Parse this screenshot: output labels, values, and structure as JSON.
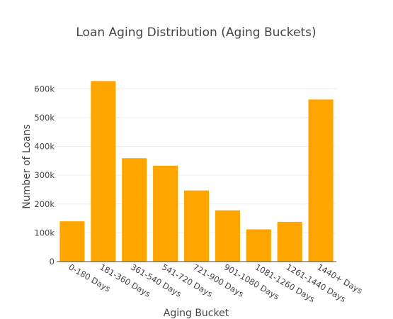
{
  "chart_data": {
    "type": "bar",
    "title": "Loan Aging Distribution (Aging Buckets)",
    "xlabel": "Aging Bucket",
    "ylabel": "Number of Loans",
    "categories": [
      "0-180 Days",
      "181-360 Days",
      "361-540 Days",
      "541-720 Days",
      "721-900 Days",
      "901-1080 Days",
      "1081-1260 Days",
      "1261-1440 Days",
      "1440+ Days"
    ],
    "values": [
      140000,
      627000,
      359000,
      333000,
      247000,
      178000,
      112000,
      138000,
      563000
    ],
    "ylim": [
      0,
      650000
    ],
    "yticks": [
      0,
      100000,
      200000,
      300000,
      400000,
      500000,
      600000
    ],
    "ytick_labels": [
      "0",
      "100k",
      "200k",
      "300k",
      "400k",
      "500k",
      "600k"
    ],
    "grid": true,
    "legend": false,
    "bar_color": "#FFA500"
  }
}
